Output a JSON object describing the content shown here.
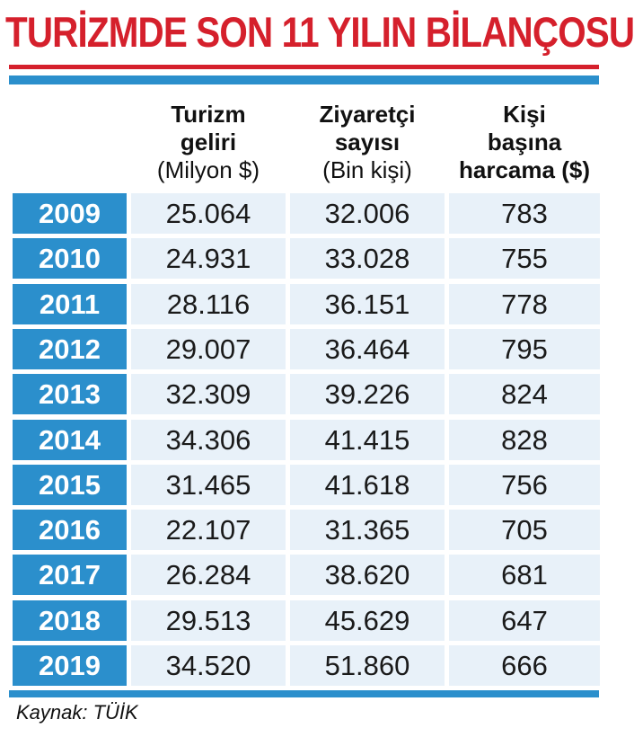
{
  "title": "TURİZMDE SON 11 YILIN BİLANÇOSU",
  "source": "Kaynak: TÜİK",
  "colors": {
    "title": "#d5202c",
    "accent_blue": "#2b8fcc",
    "cell_bg": "#e8f1f9"
  },
  "chart_data": {
    "type": "table",
    "title": "TURİZMDE SON 11 YILIN BİLANÇOSU",
    "columns": [
      {
        "lines": [
          "Turizm",
          "geliri"
        ],
        "unit": "(Milyon $)"
      },
      {
        "lines": [
          "Ziyaretçi",
          "sayısı"
        ],
        "unit": "(Bin kişi)"
      },
      {
        "lines": [
          "Kişi",
          "başına"
        ],
        "unit": "harcama ($)"
      }
    ],
    "rows": [
      {
        "year": "2009",
        "values": [
          "25.064",
          "32.006",
          "783"
        ]
      },
      {
        "year": "2010",
        "values": [
          "24.931",
          "33.028",
          "755"
        ]
      },
      {
        "year": "2011",
        "values": [
          "28.116",
          "36.151",
          "778"
        ]
      },
      {
        "year": "2012",
        "values": [
          "29.007",
          "36.464",
          "795"
        ]
      },
      {
        "year": "2013",
        "values": [
          "32.309",
          "39.226",
          "824"
        ]
      },
      {
        "year": "2014",
        "values": [
          "34.306",
          "41.415",
          "828"
        ]
      },
      {
        "year": "2015",
        "values": [
          "31.465",
          "41.618",
          "756"
        ]
      },
      {
        "year": "2016",
        "values": [
          "22.107",
          "31.365",
          "705"
        ]
      },
      {
        "year": "2017",
        "values": [
          "26.284",
          "38.620",
          "681"
        ]
      },
      {
        "year": "2018",
        "values": [
          "29.513",
          "45.629",
          "647"
        ]
      },
      {
        "year": "2019",
        "values": [
          "34.520",
          "51.860",
          "666"
        ]
      }
    ]
  }
}
